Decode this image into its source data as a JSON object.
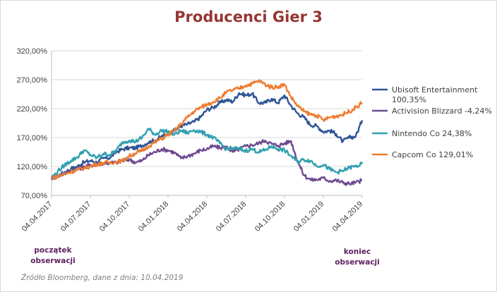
{
  "chart_data": {
    "type": "line",
    "title": "Producenci Gier 3",
    "xlabel": "",
    "ylabel": "",
    "ylim": [
      70,
      320
    ],
    "yticks": [
      "70,00%",
      "120,00%",
      "170,00%",
      "220,00%",
      "270,00%",
      "320,00%"
    ],
    "ytick_values": [
      70,
      120,
      170,
      220,
      270,
      320
    ],
    "xticks": [
      "04.04.2017",
      "04.07.2017",
      "04.10.2017",
      "04.01.2018",
      "04.04.2018",
      "04.07.2018",
      "04.10.2018",
      "04.01.2019",
      "04.04.2019"
    ],
    "grid": true,
    "legend_position": "right",
    "x_months": [
      0,
      0.5,
      1,
      1.5,
      2,
      2.5,
      3,
      3.5,
      4,
      4.5,
      5,
      5.5,
      6,
      6.5,
      7,
      7.5,
      8,
      8.5,
      9,
      9.5,
      10,
      10.5,
      11,
      11.5,
      12,
      12.5,
      13,
      13.5,
      14,
      14.5,
      15,
      15.5,
      16,
      16.5,
      17,
      17.5,
      18,
      18.5,
      19,
      19.5,
      20,
      20.5,
      21,
      21.5,
      22,
      22.5,
      23,
      23.5,
      24
    ],
    "series": [
      {
        "name": "Ubisoft Entertainment 100,35%",
        "color": "#2f5597",
        "values": [
          100,
          104,
          110,
          116,
          120,
          127,
          130,
          127,
          134,
          135,
          145,
          150,
          152,
          152,
          156,
          162,
          165,
          172,
          176,
          182,
          190,
          193,
          197,
          205,
          218,
          222,
          230,
          235,
          232,
          247,
          243,
          246,
          230,
          230,
          237,
          230,
          243,
          225,
          212,
          205,
          192,
          190,
          180,
          182,
          176,
          163,
          170,
          172,
          200
        ]
      },
      {
        "name": "Activision Blizzard -4,24%",
        "color": "#6e4b8f",
        "values": [
          100,
          103,
          108,
          112,
          115,
          120,
          122,
          124,
          126,
          126,
          127,
          130,
          132,
          127,
          130,
          140,
          145,
          150,
          148,
          144,
          134,
          138,
          142,
          148,
          150,
          155,
          152,
          154,
          145,
          150,
          155,
          157,
          160,
          165,
          159,
          156,
          160,
          164,
          130,
          105,
          97,
          97,
          100,
          95,
          96,
          92,
          90,
          92,
          96
        ]
      },
      {
        "name": "Nintendo Co 24,38%",
        "color": "#31a0b0",
        "values": [
          100,
          112,
          122,
          130,
          136,
          148,
          140,
          135,
          142,
          140,
          148,
          162,
          165,
          163,
          170,
          185,
          175,
          182,
          180,
          175,
          182,
          178,
          183,
          180,
          175,
          170,
          160,
          150,
          152,
          150,
          147,
          150,
          145,
          148,
          155,
          150,
          148,
          138,
          128,
          132,
          130,
          121,
          123,
          115,
          110,
          112,
          118,
          120,
          124
        ]
      },
      {
        "name": "Capcom Co 129,01%",
        "color": "#ed7d31",
        "values": [
          100,
          103,
          107,
          111,
          114,
          117,
          120,
          124,
          126,
          127,
          128,
          130,
          138,
          143,
          147,
          155,
          162,
          168,
          175,
          182,
          193,
          205,
          215,
          222,
          227,
          232,
          238,
          248,
          252,
          255,
          260,
          263,
          268,
          262,
          257,
          258,
          262,
          240,
          225,
          215,
          210,
          208,
          200,
          205,
          207,
          210,
          215,
          222,
          230
        ]
      }
    ]
  },
  "annotations": {
    "start": [
      "początek",
      "obserwacji"
    ],
    "end": [
      "koniec",
      "obserwacji"
    ]
  },
  "source": "Źródło Bloomberg, dane z dnia: 10.04.2019"
}
